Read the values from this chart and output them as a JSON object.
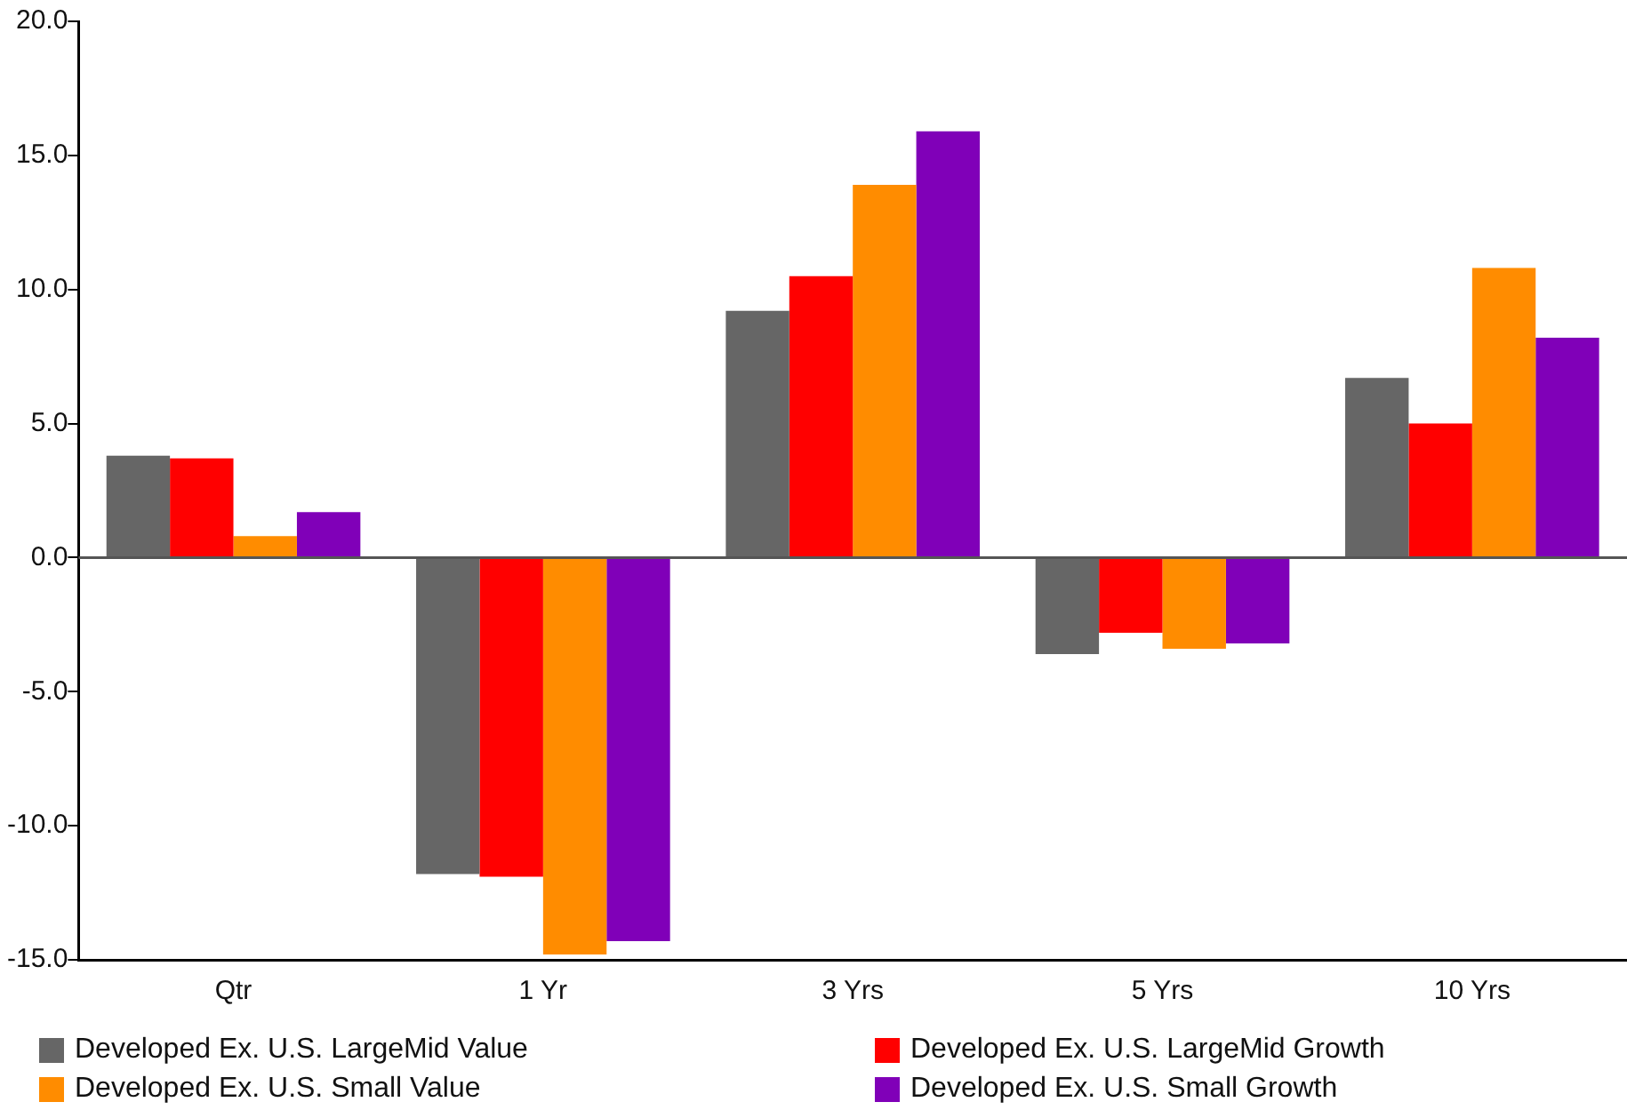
{
  "chart_data": {
    "type": "bar",
    "categories": [
      "Qtr",
      "1 Yr",
      "3 Yrs",
      "5 Yrs",
      "10 Yrs"
    ],
    "series": [
      {
        "name": "Developed Ex. U.S. LargeMid Value",
        "color": "#666666",
        "values": [
          3.8,
          -11.8,
          9.2,
          -3.6,
          6.7
        ]
      },
      {
        "name": "Developed Ex. U.S. LargeMid Growth",
        "color": "#ff0000",
        "values": [
          3.7,
          -11.9,
          10.5,
          -2.8,
          5.0
        ]
      },
      {
        "name": "Developed Ex. U.S. Small Value",
        "color": "#ff8c00",
        "values": [
          0.8,
          -14.8,
          13.9,
          -3.4,
          10.8
        ]
      },
      {
        "name": "Developed Ex. U.S. Small Growth",
        "color": "#8000b8",
        "values": [
          1.7,
          -14.3,
          15.9,
          -3.2,
          8.2
        ]
      }
    ],
    "ylim": [
      -15,
      20
    ],
    "yticks": [
      {
        "value": -15,
        "label": "-15.0"
      },
      {
        "value": -10,
        "label": "-10.0"
      },
      {
        "value": -5,
        "label": "-5.0"
      },
      {
        "value": 0,
        "label": "0.0"
      },
      {
        "value": 5,
        "label": "5.0"
      },
      {
        "value": 10,
        "label": "10.0"
      },
      {
        "value": 15,
        "label": "15.0"
      },
      {
        "value": 20,
        "label": "20.0"
      }
    ],
    "ref_lines": [
      {
        "axis": "y",
        "value": 0,
        "color": "#555555"
      }
    ],
    "grid": false,
    "legend": "bottom"
  }
}
